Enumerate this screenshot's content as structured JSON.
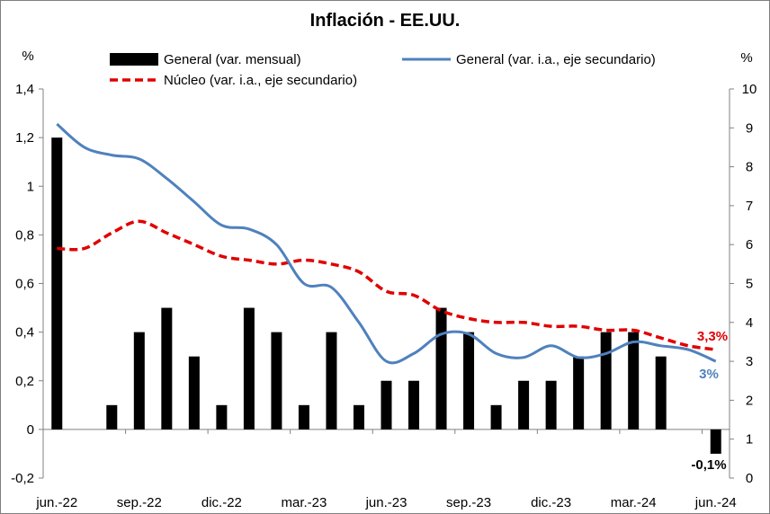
{
  "chart_data": {
    "type": "bar+line",
    "title": "Inflación - EE.UU.",
    "y_left_unit": "%",
    "y_right_unit": "%",
    "ylim_left": [
      -0.2,
      1.4
    ],
    "ylim_right": [
      0,
      10
    ],
    "y_left_ticks": [
      "-0,2",
      "0",
      "0,2",
      "0,4",
      "0,6",
      "0,8",
      "1",
      "1,2",
      "1,4"
    ],
    "y_right_ticks": [
      "0",
      "1",
      "2",
      "3",
      "4",
      "5",
      "6",
      "7",
      "8",
      "9",
      "10"
    ],
    "x_tick_labels": [
      "jun.-22",
      "sep.-22",
      "dic.-22",
      "mar.-23",
      "jun.-23",
      "sep.-23",
      "dic.-23",
      "mar.-24",
      "jun.-24"
    ],
    "x": [
      "jun.-22",
      "jul.-22",
      "ago.-22",
      "sep.-22",
      "oct.-22",
      "nov.-22",
      "dic.-22",
      "ene.-23",
      "feb.-23",
      "mar.-23",
      "abr.-23",
      "may.-23",
      "jun.-23",
      "jul.-23",
      "ago.-23",
      "sep.-23",
      "oct.-23",
      "nov.-23",
      "dic.-23",
      "ene.-24",
      "feb.-24",
      "mar.-24",
      "abr.-24",
      "may.-24",
      "jun.-24"
    ],
    "series": [
      {
        "name": "General (var. mensual)",
        "type": "bar",
        "axis": "left",
        "color": "#000000",
        "values": [
          1.2,
          0.0,
          0.1,
          0.4,
          0.5,
          0.3,
          0.1,
          0.5,
          0.4,
          0.1,
          0.4,
          0.1,
          0.2,
          0.2,
          0.5,
          0.4,
          0.1,
          0.2,
          0.2,
          0.3,
          0.4,
          0.4,
          0.3,
          0.0,
          -0.1
        ]
      },
      {
        "name": "General (var. i.a., eje secundario)",
        "type": "line",
        "axis": "right",
        "color": "#4f81bd",
        "style": "solid",
        "values": [
          9.1,
          8.5,
          8.3,
          8.2,
          7.7,
          7.1,
          6.5,
          6.4,
          6.0,
          5.0,
          4.9,
          4.0,
          3.0,
          3.2,
          3.7,
          3.7,
          3.2,
          3.1,
          3.4,
          3.1,
          3.2,
          3.5,
          3.4,
          3.3,
          3.0
        ]
      },
      {
        "name": "Núcleo (var. i.a., eje secundario)",
        "type": "line",
        "axis": "right",
        "color": "#e00000",
        "style": "dashed",
        "values": [
          5.9,
          5.9,
          6.3,
          6.6,
          6.3,
          6.0,
          5.7,
          5.6,
          5.5,
          5.6,
          5.5,
          5.3,
          4.8,
          4.7,
          4.3,
          4.1,
          4.0,
          4.0,
          3.9,
          3.9,
          3.8,
          3.8,
          3.6,
          3.4,
          3.3
        ]
      }
    ],
    "annotations": [
      {
        "text": "3,3%",
        "color": "#e00000"
      },
      {
        "text": "3%",
        "color": "#4f81bd"
      },
      {
        "text": "-0,1%",
        "color": "#000000"
      }
    ],
    "grid": false,
    "legend_position": "top"
  }
}
